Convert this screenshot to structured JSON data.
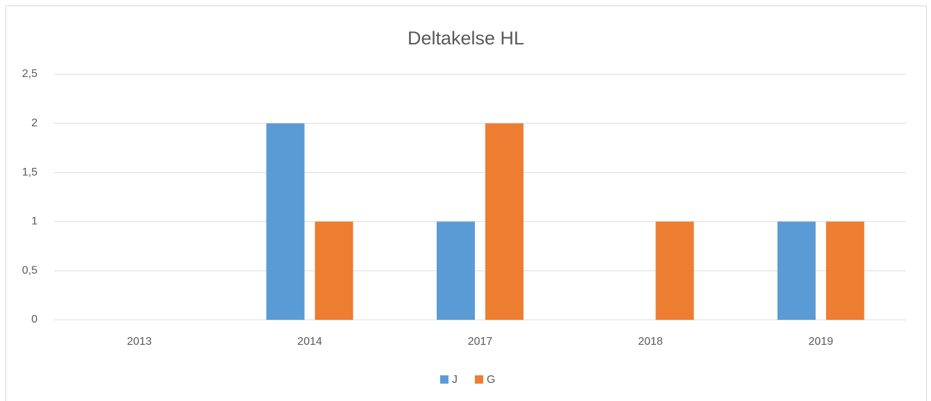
{
  "chart_data": {
    "type": "bar",
    "title": "Deltakelse HL",
    "categories": [
      "2013",
      "2014",
      "2017",
      "2018",
      "2019"
    ],
    "series": [
      {
        "name": "J",
        "color": "#5b9bd5",
        "values": [
          0,
          2,
          1,
          0,
          1
        ]
      },
      {
        "name": "G",
        "color": "#ed7d31",
        "values": [
          0,
          1,
          2,
          1,
          1
        ]
      }
    ],
    "ylim": [
      0,
      2.5
    ],
    "yticks": [
      0,
      {
        "value": 0.5,
        "label": "0,5"
      },
      1,
      {
        "value": 1.5,
        "label": "1,5"
      },
      2,
      {
        "value": 2.5,
        "label": "2,5"
      }
    ],
    "grid": true,
    "legend": "bottom"
  }
}
